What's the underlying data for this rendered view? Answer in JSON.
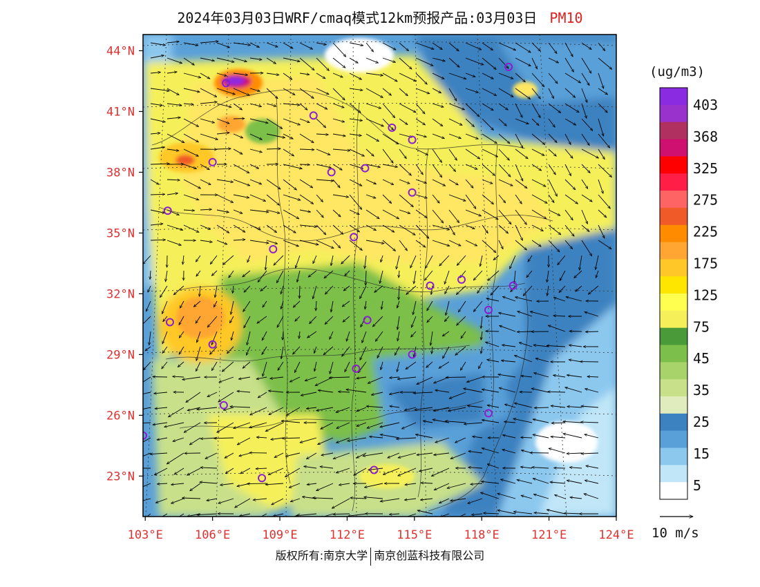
{
  "title": {
    "main": "2024年03月03日WRF/cmaq模式12km预报产品:03月03日",
    "pollutant": "PM10"
  },
  "map": {
    "lat_labels": [
      "44°N",
      "41°N",
      "38°N",
      "35°N",
      "32°N",
      "29°N",
      "26°N",
      "23°N"
    ],
    "lon_labels": [
      "103°E",
      "106°E",
      "109°E",
      "112°E",
      "115°E",
      "118°E",
      "121°E",
      "124°E"
    ],
    "lat_range": [
      21.0,
      44.8
    ],
    "lon_range": [
      102.9,
      124.0
    ]
  },
  "colorbar": {
    "unit": "(ug/m3)",
    "labels": [
      "403",
      "368",
      "325",
      "275",
      "225",
      "175",
      "125",
      "75",
      "45",
      "35",
      "25",
      "15",
      "5"
    ],
    "colors": [
      "#8a2be2",
      "#9932cc",
      "#b03060",
      "#d01070",
      "#ff0000",
      "#ff1e46",
      "#ff6464",
      "#f05a28",
      "#ff8c00",
      "#ffa532",
      "#ffc828",
      "#ffe600",
      "#ffff50",
      "#f5f05a",
      "#4a9a3a",
      "#7cbf4a",
      "#a8d26a",
      "#c8e08a",
      "#e0ebbe",
      "#3c82c0",
      "#5aa0d8",
      "#8cc8ee",
      "#c0e6f8",
      "#ffffff"
    ]
  },
  "wind_legend": {
    "label": "10 m/s"
  },
  "cities": [
    {
      "lon": 106.6,
      "lat": 42.4,
      "name": ""
    },
    {
      "lon": 110.5,
      "lat": 40.8
    },
    {
      "lon": 114.0,
      "lat": 40.2
    },
    {
      "lon": 114.9,
      "lat": 39.6
    },
    {
      "lon": 119.2,
      "lat": 43.2
    },
    {
      "lon": 106.0,
      "lat": 38.5
    },
    {
      "lon": 111.3,
      "lat": 38.0
    },
    {
      "lon": 112.8,
      "lat": 38.2
    },
    {
      "lon": 114.9,
      "lat": 37.0
    },
    {
      "lon": 104.0,
      "lat": 36.1
    },
    {
      "lon": 112.3,
      "lat": 34.8
    },
    {
      "lon": 108.7,
      "lat": 34.2
    },
    {
      "lon": 115.7,
      "lat": 32.4
    },
    {
      "lon": 117.1,
      "lat": 32.7
    },
    {
      "lon": 119.4,
      "lat": 32.4
    },
    {
      "lon": 118.3,
      "lat": 31.2
    },
    {
      "lon": 104.1,
      "lat": 30.6
    },
    {
      "lon": 112.9,
      "lat": 30.7
    },
    {
      "lon": 106.0,
      "lat": 29.5
    },
    {
      "lon": 114.9,
      "lat": 29.0
    },
    {
      "lon": 112.4,
      "lat": 28.3
    },
    {
      "lon": 106.5,
      "lat": 26.5
    },
    {
      "lon": 118.3,
      "lat": 26.1
    },
    {
      "lon": 102.9,
      "lat": 25.0
    },
    {
      "lon": 108.2,
      "lat": 22.9
    },
    {
      "lon": 113.2,
      "lat": 23.3
    }
  ],
  "copyright": {
    "left": "版权所有:南京大学",
    "right": "南京创蓝科技有限公司"
  }
}
